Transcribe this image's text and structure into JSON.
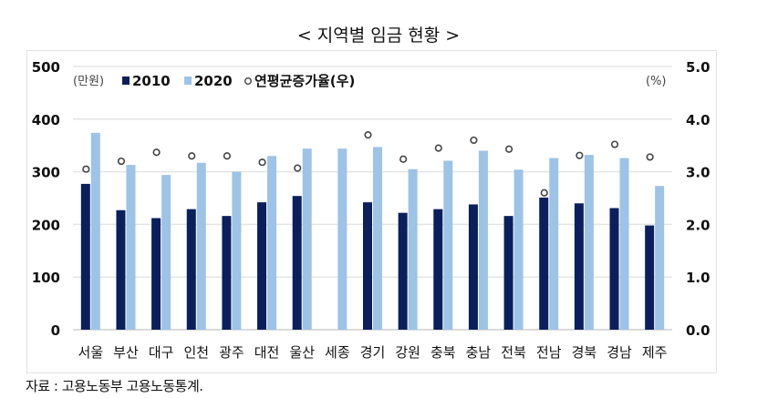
{
  "title": "< 지역별 임금 현황 >",
  "source": "자료 : 고용노동부 고용노동통계.",
  "chart_data": {
    "type": "bar",
    "title": "< 지역별 임금 현황 >",
    "categories": [
      "서울",
      "부산",
      "대구",
      "인천",
      "광주",
      "대전",
      "울산",
      "세종",
      "경기",
      "강원",
      "충북",
      "충남",
      "전북",
      "전남",
      "경북",
      "경남",
      "제주"
    ],
    "series": [
      {
        "name": "2010",
        "axis": "left",
        "type": "bar",
        "color": "#0a1f5c",
        "values": [
          277,
          227,
          212,
          229,
          216,
          242,
          254,
          null,
          242,
          222,
          229,
          238,
          216,
          251,
          240,
          231,
          198
        ]
      },
      {
        "name": "2020",
        "axis": "left",
        "type": "bar",
        "color": "#9dc3e6",
        "values": [
          374,
          313,
          294,
          317,
          300,
          330,
          344,
          344,
          347,
          305,
          321,
          340,
          304,
          326,
          332,
          326,
          273
        ]
      },
      {
        "name": "연평균증가율(우)",
        "axis": "right",
        "type": "scatter",
        "color": "#444444",
        "values": [
          3.05,
          3.2,
          3.37,
          3.3,
          3.3,
          3.18,
          3.07,
          null,
          3.7,
          3.24,
          3.45,
          3.6,
          3.43,
          2.6,
          3.31,
          3.52,
          3.28
        ]
      }
    ],
    "ylabel": "(만원)",
    "y2label": "(%)",
    "ylim": [
      0,
      500
    ],
    "y2lim": [
      0,
      5
    ],
    "yticks": [
      "0",
      "100",
      "200",
      "300",
      "400",
      "500"
    ],
    "y2ticks": [
      "0.0",
      "1.0",
      "2.0",
      "3.0",
      "4.0",
      "5.0"
    ],
    "grid": true,
    "legend": "top-left"
  }
}
